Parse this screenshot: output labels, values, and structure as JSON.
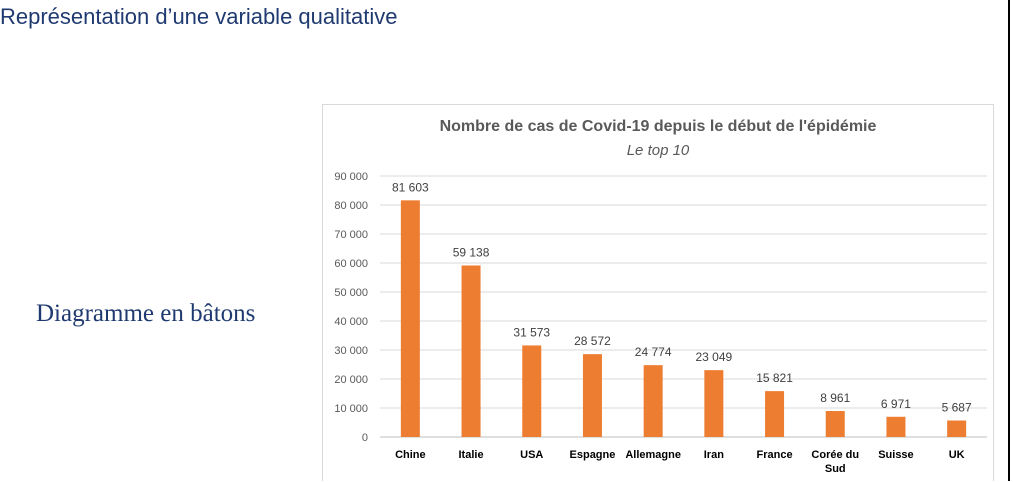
{
  "slide": {
    "title": "Représentation d’une variable qualitative",
    "side_label": "Diagramme en bâtons"
  },
  "colors": {
    "title_text": "#1f3a70",
    "bar": "#ed7d31",
    "grid": "#d9d9d9",
    "label_text": "#404040"
  },
  "chart_data": {
    "type": "bar",
    "title": "Nombre de cas de Covid-19 depuis le début de l'épidémie",
    "subtitle": "Le top 10",
    "categories": [
      "Chine",
      "Italie",
      "USA",
      "Espagne",
      "Allemagne",
      "Iran",
      "France",
      "Corée du Sud",
      "Suisse",
      "UK"
    ],
    "values": [
      81603,
      59138,
      31573,
      28572,
      24774,
      23049,
      15821,
      8961,
      6971,
      5687
    ],
    "data_labels": [
      "81 603",
      "59 138",
      "31 573",
      "28 572",
      "24 774",
      "23 049",
      "15 821",
      "8 961",
      "6 971",
      "5 687"
    ],
    "yticks": [
      "0",
      "10 000",
      "20 000",
      "30 000",
      "40 000",
      "50 000",
      "60 000",
      "70 000",
      "80 000",
      "90 000"
    ],
    "ylim": [
      0,
      90000
    ],
    "xlabel": "",
    "ylabel": "",
    "grid": true,
    "legend": false
  }
}
